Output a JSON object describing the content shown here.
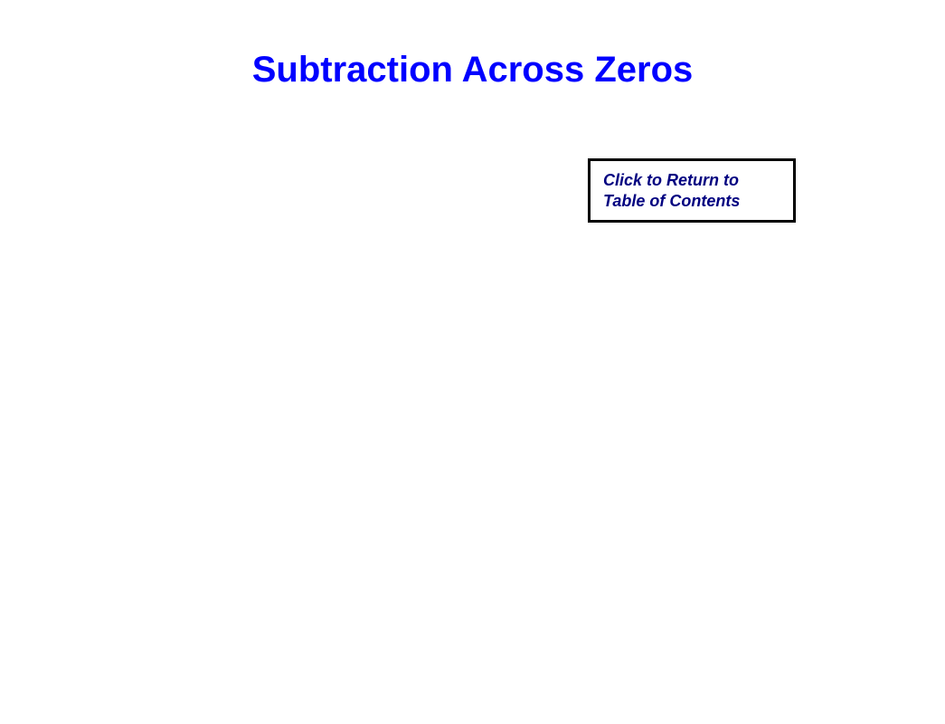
{
  "title": "Subtraction Across Zeros",
  "toc_button": {
    "line1": "Click to Return to",
    "line2": "Table of Contents"
  },
  "colors": {
    "title_color": "#0000ff",
    "button_text_color": "#000080",
    "button_border_color": "#000000",
    "background_color": "#ffffff"
  },
  "typography": {
    "title_fontsize": 40,
    "button_fontsize": 18,
    "font_family": "Arial"
  }
}
